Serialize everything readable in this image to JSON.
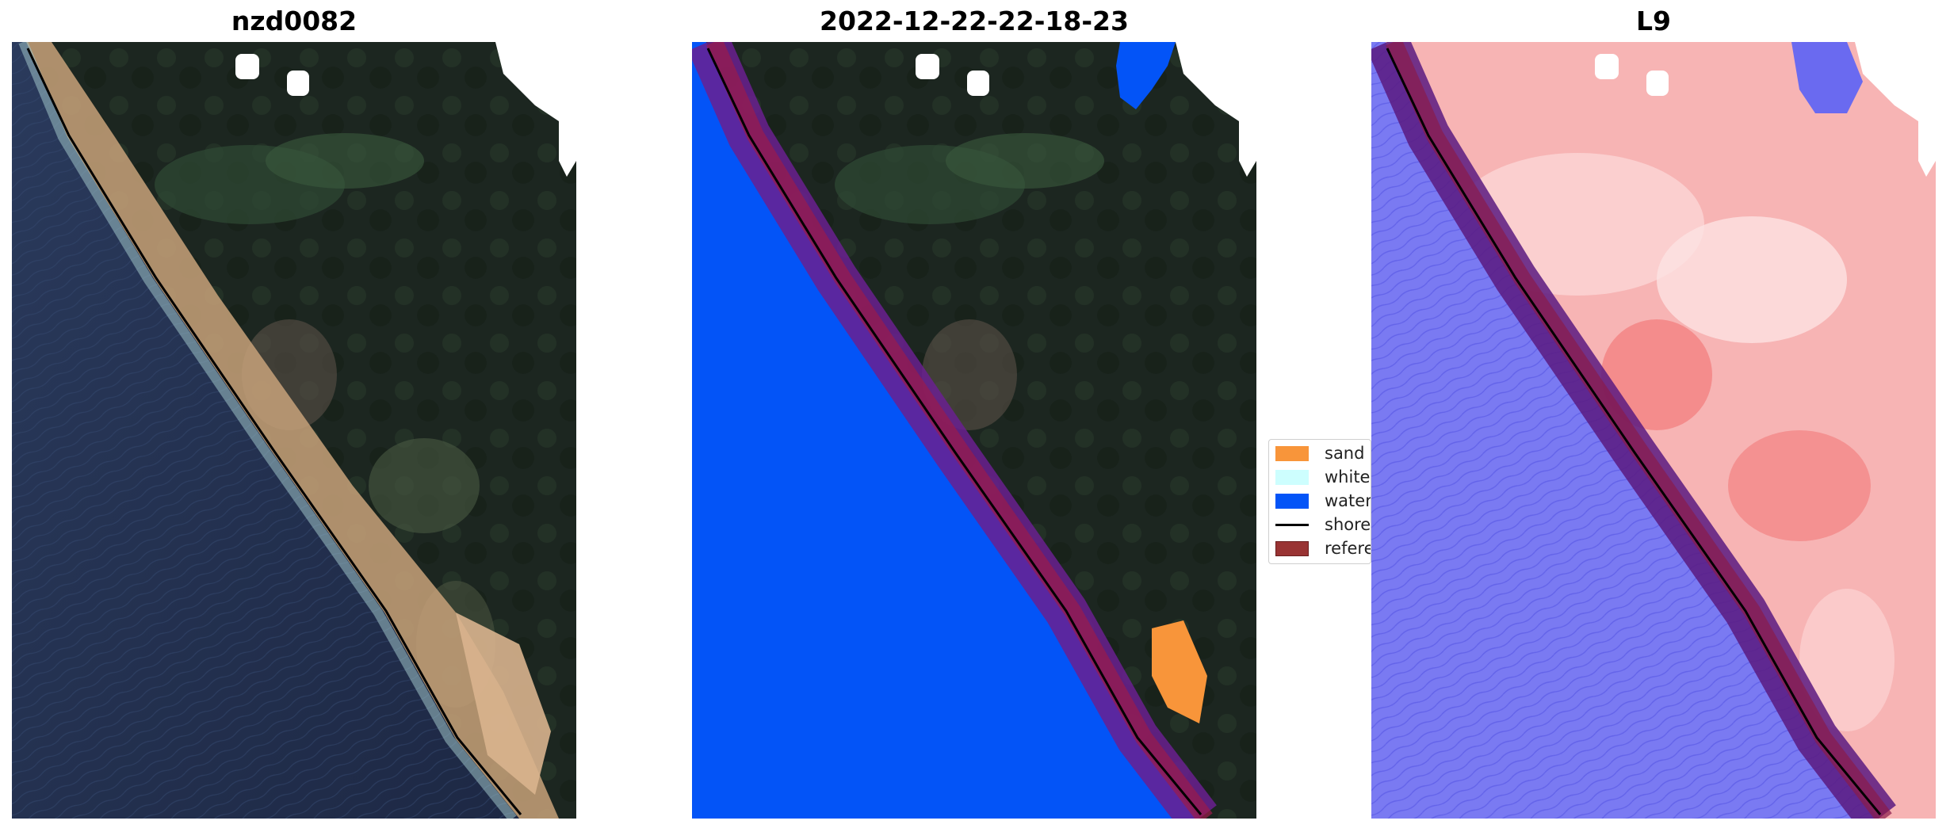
{
  "panels": [
    {
      "title": "nzd0082"
    },
    {
      "title": "2022-12-22-22-18-23"
    },
    {
      "title": "L9"
    }
  ],
  "legend": {
    "items": [
      {
        "label": "sand",
        "color": "#f8953a",
        "kind": "patch"
      },
      {
        "label": "whitewater",
        "color": "#cdfefe",
        "kind": "patch"
      },
      {
        "label": "water",
        "color": "#0354f7",
        "kind": "patch"
      },
      {
        "label": "shoreline",
        "color": "#000000",
        "kind": "line"
      },
      {
        "label": "reference",
        "color": "#993333",
        "kind": "patch"
      }
    ]
  },
  "colors": {
    "ocean": "#1e2a4a",
    "land": "#1f2a22",
    "beach_sand": "#c8a27a",
    "classified_water": "#0354f7",
    "classified_sand": "#f8953a",
    "reference_buffer": "#8b1a4a",
    "index_land": "#f7a8a8",
    "index_water": "#6e6ef5"
  }
}
